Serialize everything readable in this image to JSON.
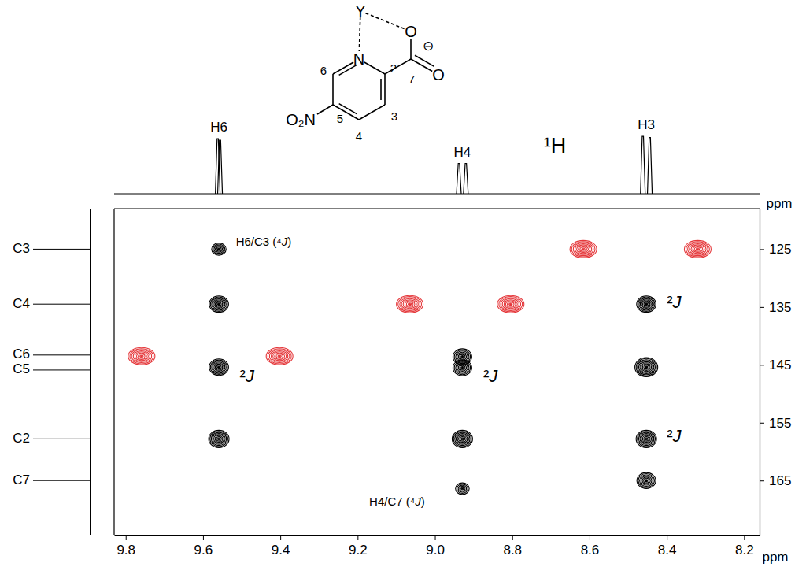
{
  "chart_data": {
    "type": "scatter",
    "xlabel": "ppm",
    "ylabel": "ppm",
    "xlim": [
      9.83,
      8.16
    ],
    "ylim": [
      118,
      174.5
    ],
    "xticks": [
      9.8,
      9.6,
      9.4,
      9.2,
      {
        "value": 9,
        "label": "9.0"
      },
      8.8,
      8.6,
      8.4,
      8.2
    ],
    "yticks": [
      125,
      135,
      145,
      155,
      165
    ],
    "marker": "contour",
    "series": [
      {
        "color": "#000000",
        "x": [
          9.559,
          9.559,
          9.559,
          9.559,
          8.929,
          8.929,
          8.929,
          8.929,
          8.453,
          8.453,
          8.453,
          8.453
        ],
        "values": [
          125.0,
          134.5,
          145.4,
          157.8,
          143.6,
          145.5,
          157.8,
          166.4,
          134.5,
          145.4,
          157.8,
          165.0
        ],
        "intensity": [
          0.5,
          0.9,
          0.9,
          1.0,
          0.85,
          0.85,
          1.0,
          0.45,
          0.9,
          1.25,
          1.0,
          0.85
        ]
      },
      {
        "color": "#e5383b",
        "x": [
          8.616,
          8.32,
          9.065,
          8.804,
          9.759,
          9.402
        ],
        "values": [
          125.0,
          125.0,
          134.5,
          134.5,
          143.5,
          143.5
        ],
        "intensity": [
          1.0,
          1.0,
          1.0,
          1.0,
          1.0,
          1.0
        ]
      }
    ],
    "proton_spectrum": {
      "labels": [
        "H6",
        "H4",
        "H3"
      ],
      "lines": [
        [
          9.562,
          9.556
        ],
        [
          8.938,
          8.92
        ],
        [
          8.462,
          8.444
        ]
      ],
      "heights": [
        [
          1.0,
          0.97
        ],
        [
          0.55,
          0.55
        ],
        [
          1.04,
          1.02
        ]
      ]
    },
    "nucleus_label": "¹H",
    "carbon_labels": {
      "labels": [
        "C3",
        "C4",
        "C6",
        "C5",
        "C2",
        "C7"
      ],
      "values": [
        125.0,
        134.5,
        143.3,
        145.9,
        157.8,
        165.0
      ]
    },
    "annotations": [
      {
        "text": "H6/C3 (⁴J)",
        "x": 9.515,
        "y": 123.8
      },
      {
        "text": "²J",
        "x": 9.505,
        "y": 147.2
      },
      {
        "text": "²J",
        "x": 8.875,
        "y": 147.2
      },
      {
        "text": "²J",
        "x": 8.4,
        "y": 134.3
      },
      {
        "text": "²J",
        "x": 8.4,
        "y": 157.5
      },
      {
        "text": "H4/C7 (⁴J)",
        "x": 9.17,
        "y": 168.8
      }
    ],
    "structure_labels": [
      "Y",
      "N",
      "6",
      "2",
      "O",
      "⊖",
      "7",
      "O",
      "O₂N",
      "5",
      "4",
      "3"
    ]
  }
}
